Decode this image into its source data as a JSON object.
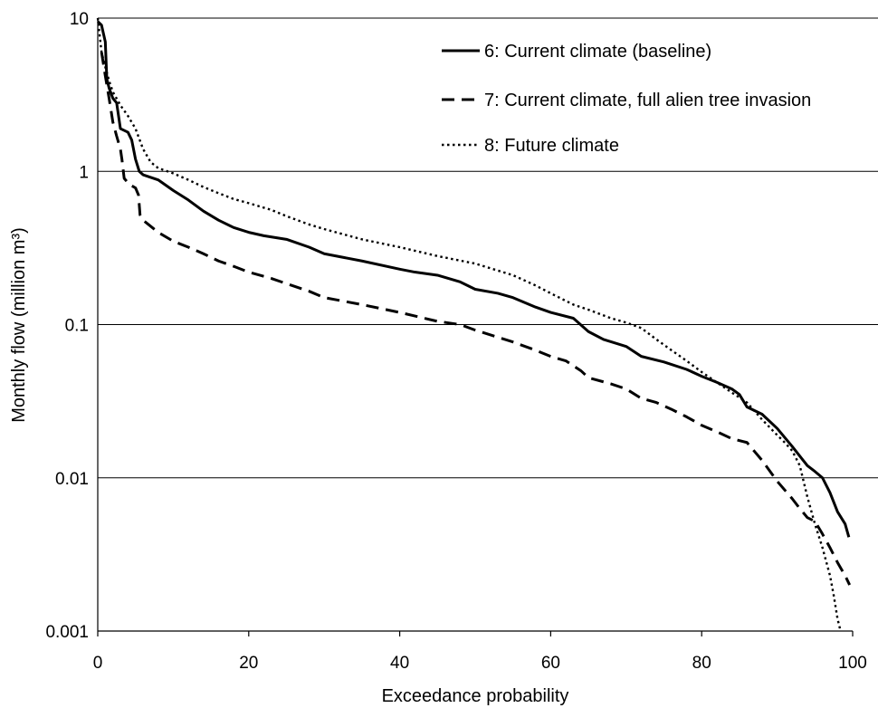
{
  "chart_data": {
    "type": "line",
    "title": "",
    "xlabel": "Exceedance probability",
    "ylabel": "Monthly flow (million m³)",
    "xlim": [
      0,
      100
    ],
    "ylim": [
      0.001,
      10
    ],
    "y_scale": "log",
    "x_ticks": [
      0,
      20,
      40,
      60,
      80,
      100
    ],
    "x_tick_labels": [
      "0",
      "20",
      "40",
      "60",
      "80",
      "100"
    ],
    "y_ticks": [
      0.001,
      0.01,
      0.1,
      1,
      10
    ],
    "y_tick_labels": [
      "0.001",
      "0.01",
      "0.1",
      "1",
      "10"
    ],
    "grid": "horizontal major gridlines",
    "legend_position": "top-right",
    "series": [
      {
        "name": "6: Current climate (baseline)",
        "line_style": "solid",
        "color": "#000000",
        "points": [
          [
            0,
            9.5
          ],
          [
            0.5,
            9
          ],
          [
            1,
            7
          ],
          [
            1.2,
            4
          ],
          [
            1.5,
            3.5
          ],
          [
            2,
            3.0
          ],
          [
            2.5,
            2.8
          ],
          [
            3,
            1.9
          ],
          [
            4,
            1.8
          ],
          [
            4.5,
            1.6
          ],
          [
            5,
            1.2
          ],
          [
            5.5,
            1.0
          ],
          [
            6,
            0.95
          ],
          [
            8,
            0.88
          ],
          [
            10,
            0.75
          ],
          [
            12,
            0.65
          ],
          [
            14,
            0.55
          ],
          [
            16,
            0.48
          ],
          [
            18,
            0.43
          ],
          [
            20,
            0.4
          ],
          [
            22,
            0.38
          ],
          [
            25,
            0.36
          ],
          [
            28,
            0.32
          ],
          [
            30,
            0.29
          ],
          [
            35,
            0.26
          ],
          [
            40,
            0.23
          ],
          [
            42,
            0.22
          ],
          [
            45,
            0.21
          ],
          [
            48,
            0.19
          ],
          [
            50,
            0.17
          ],
          [
            53,
            0.16
          ],
          [
            55,
            0.15
          ],
          [
            58,
            0.13
          ],
          [
            60,
            0.12
          ],
          [
            63,
            0.11
          ],
          [
            65,
            0.09
          ],
          [
            67,
            0.08
          ],
          [
            70,
            0.072
          ],
          [
            72,
            0.062
          ],
          [
            75,
            0.057
          ],
          [
            78,
            0.051
          ],
          [
            80,
            0.046
          ],
          [
            82,
            0.042
          ],
          [
            84,
            0.038
          ],
          [
            85,
            0.035
          ],
          [
            86,
            0.029
          ],
          [
            88,
            0.026
          ],
          [
            90,
            0.021
          ],
          [
            92,
            0.016
          ],
          [
            94,
            0.012
          ],
          [
            95,
            0.011
          ],
          [
            96,
            0.01
          ],
          [
            97,
            0.008
          ],
          [
            98,
            0.006
          ],
          [
            99,
            0.005
          ],
          [
            99.5,
            0.0041
          ]
        ]
      },
      {
        "name": "7: Current climate, full alien tree invasion",
        "line_style": "dashed",
        "color": "#000000",
        "points": [
          [
            0.5,
            6
          ],
          [
            1,
            4.2
          ],
          [
            1.5,
            3.0
          ],
          [
            2,
            2.1
          ],
          [
            2.5,
            1.7
          ],
          [
            3,
            1.4
          ],
          [
            3.2,
            1.2
          ],
          [
            3.5,
            0.9
          ],
          [
            4.2,
            0.82
          ],
          [
            5,
            0.78
          ],
          [
            5.4,
            0.7
          ],
          [
            5.6,
            0.52
          ],
          [
            6,
            0.48
          ],
          [
            8,
            0.4
          ],
          [
            10,
            0.35
          ],
          [
            12,
            0.32
          ],
          [
            14,
            0.29
          ],
          [
            16,
            0.26
          ],
          [
            18,
            0.24
          ],
          [
            20,
            0.22
          ],
          [
            23,
            0.2
          ],
          [
            25,
            0.185
          ],
          [
            28,
            0.165
          ],
          [
            30,
            0.15
          ],
          [
            35,
            0.135
          ],
          [
            40,
            0.12
          ],
          [
            45,
            0.105
          ],
          [
            48,
            0.1
          ],
          [
            50,
            0.092
          ],
          [
            55,
            0.077
          ],
          [
            58,
            0.068
          ],
          [
            60,
            0.062
          ],
          [
            62,
            0.058
          ],
          [
            64,
            0.05
          ],
          [
            65,
            0.045
          ],
          [
            68,
            0.041
          ],
          [
            70,
            0.038
          ],
          [
            72,
            0.033
          ],
          [
            74,
            0.031
          ],
          [
            76,
            0.028
          ],
          [
            78,
            0.025
          ],
          [
            80,
            0.022
          ],
          [
            82,
            0.02
          ],
          [
            84,
            0.018
          ],
          [
            86,
            0.017
          ],
          [
            88,
            0.013
          ],
          [
            90,
            0.0095
          ],
          [
            92,
            0.0073
          ],
          [
            93,
            0.0063
          ],
          [
            94,
            0.0055
          ],
          [
            95,
            0.0052
          ],
          [
            96,
            0.0043
          ],
          [
            97,
            0.0035
          ],
          [
            98,
            0.0028
          ],
          [
            99,
            0.0023
          ],
          [
            99.6,
            0.002
          ]
        ]
      },
      {
        "name": "8: Future climate",
        "line_style": "dotted",
        "color": "#000000",
        "points": [
          [
            0,
            10
          ],
          [
            0.5,
            6
          ],
          [
            1,
            4.8
          ],
          [
            1.5,
            3.9
          ],
          [
            2,
            3.3
          ],
          [
            3,
            2.7
          ],
          [
            4,
            2.3
          ],
          [
            5,
            1.9
          ],
          [
            6,
            1.4
          ],
          [
            7,
            1.15
          ],
          [
            8,
            1.05
          ],
          [
            10,
            0.97
          ],
          [
            12,
            0.88
          ],
          [
            14,
            0.79
          ],
          [
            16,
            0.72
          ],
          [
            18,
            0.66
          ],
          [
            20,
            0.62
          ],
          [
            23,
            0.56
          ],
          [
            25,
            0.51
          ],
          [
            28,
            0.45
          ],
          [
            30,
            0.42
          ],
          [
            35,
            0.36
          ],
          [
            40,
            0.32
          ],
          [
            45,
            0.28
          ],
          [
            50,
            0.25
          ],
          [
            55,
            0.21
          ],
          [
            58,
            0.18
          ],
          [
            60,
            0.16
          ],
          [
            63,
            0.135
          ],
          [
            65,
            0.125
          ],
          [
            68,
            0.11
          ],
          [
            70,
            0.103
          ],
          [
            72,
            0.095
          ],
          [
            74,
            0.08
          ],
          [
            76,
            0.068
          ],
          [
            78,
            0.058
          ],
          [
            80,
            0.049
          ],
          [
            82,
            0.042
          ],
          [
            84,
            0.036
          ],
          [
            86,
            0.031
          ],
          [
            88,
            0.024
          ],
          [
            90,
            0.019
          ],
          [
            91,
            0.017
          ],
          [
            92,
            0.015
          ],
          [
            93,
            0.012
          ],
          [
            94,
            0.0075
          ],
          [
            95,
            0.005
          ],
          [
            96,
            0.0035
          ],
          [
            97,
            0.0023
          ],
          [
            97.5,
            0.0017
          ],
          [
            98,
            0.0012
          ],
          [
            98.4,
            0.001
          ]
        ]
      }
    ]
  }
}
